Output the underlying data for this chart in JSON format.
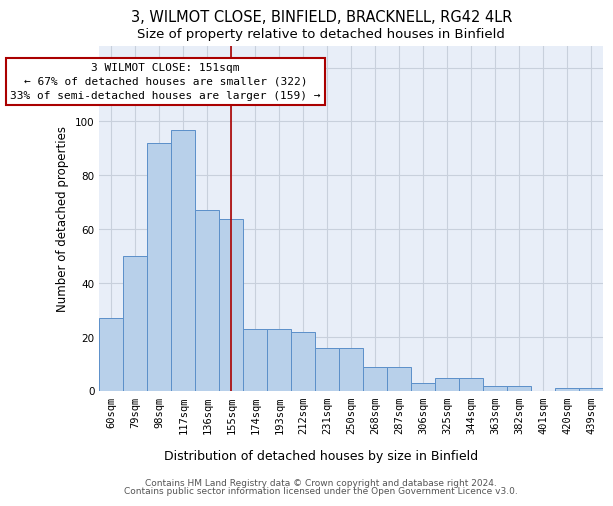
{
  "title1": "3, WILMOT CLOSE, BINFIELD, BRACKNELL, RG42 4LR",
  "title2": "Size of property relative to detached houses in Binfield",
  "xlabel": "Distribution of detached houses by size in Binfield",
  "ylabel": "Number of detached properties",
  "categories": [
    "60sqm",
    "79sqm",
    "98sqm",
    "117sqm",
    "136sqm",
    "155sqm",
    "174sqm",
    "193sqm",
    "212sqm",
    "231sqm",
    "250sqm",
    "268sqm",
    "287sqm",
    "306sqm",
    "325sqm",
    "344sqm",
    "363sqm",
    "382sqm",
    "401sqm",
    "420sqm",
    "439sqm"
  ],
  "values": [
    27,
    50,
    92,
    97,
    67,
    64,
    23,
    23,
    22,
    16,
    16,
    9,
    9,
    3,
    5,
    5,
    2,
    2,
    0,
    1,
    1
  ],
  "bar_color": "#b8d0ea",
  "bar_edge_color": "#5b8fc9",
  "vline_color": "#aa0000",
  "vline_x": 5.0,
  "annotation_line0": "3 WILMOT CLOSE: 151sqm",
  "annotation_line1": "← 67% of detached houses are smaller (322)",
  "annotation_line2": "33% of semi-detached houses are larger (159) →",
  "ylim": [
    0,
    128
  ],
  "yticks": [
    0,
    20,
    40,
    60,
    80,
    100,
    120
  ],
  "grid_color": "#c8d0dc",
  "plot_bg_color": "#e8eef8",
  "footer1": "Contains HM Land Registry data © Crown copyright and database right 2024.",
  "footer2": "Contains public sector information licensed under the Open Government Licence v3.0.",
  "title1_fontsize": 10.5,
  "title2_fontsize": 9.5,
  "xlabel_fontsize": 9,
  "ylabel_fontsize": 8.5,
  "tick_fontsize": 7.5,
  "annot_fontsize": 8,
  "footer_fontsize": 6.5
}
